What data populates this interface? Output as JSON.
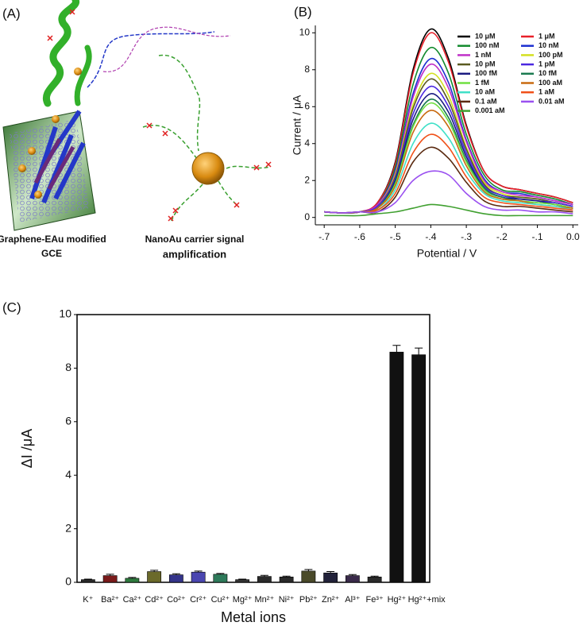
{
  "panel_labels": [
    "(A)",
    "(B)",
    "(C)"
  ],
  "schematic": {
    "left_label": [
      "Graphene-EAu modified",
      "GCE"
    ],
    "right_label": [
      "NanoAu carrier signal",
      "amplification"
    ]
  },
  "chart_data": [
    {
      "type": "line",
      "ylabel": "Current / μA",
      "xlabel": "Potential / V",
      "x": [
        -0.7,
        -0.65,
        -0.6,
        -0.55,
        -0.5,
        -0.45,
        -0.4,
        -0.35,
        -0.3,
        -0.25,
        -0.2,
        -0.15,
        -0.1,
        -0.05,
        0
      ],
      "xlim": [
        -0.725,
        0.015
      ],
      "xticks": [
        {
          "value": -0.7,
          "label": "-.7"
        },
        {
          "value": -0.6,
          "label": "-.6"
        },
        {
          "value": -0.5,
          "label": "-.5"
        },
        {
          "value": -0.4,
          "label": "-.4"
        },
        {
          "value": -0.3,
          "label": "-.3"
        },
        {
          "value": -0.2,
          "label": "-.2"
        },
        {
          "value": -0.1,
          "label": "-.1"
        },
        {
          "value": 0,
          "label": "0.0"
        }
      ],
      "ylim": [
        -0.4,
        10.4
      ],
      "yticks": [
        0,
        2,
        4,
        6,
        8,
        10
      ],
      "legend": "upper right",
      "series": [
        {
          "name": "10 μM",
          "color": "#000000",
          "values": [
            0.3,
            0.25,
            0.3,
            0.8,
            3.0,
            8.0,
            10.2,
            8.6,
            5.0,
            2.5,
            1.7,
            1.5,
            1.3,
            1.1,
            0.8
          ]
        },
        {
          "name": "1 μM",
          "color": "#e8202a",
          "values": [
            0.3,
            0.25,
            0.3,
            0.8,
            2.9,
            7.8,
            10.0,
            8.4,
            4.9,
            2.5,
            1.7,
            1.5,
            1.3,
            1.1,
            0.8
          ]
        },
        {
          "name": "100 nM",
          "color": "#138a2e",
          "values": [
            0.3,
            0.25,
            0.3,
            0.7,
            2.7,
            7.2,
            9.2,
            7.8,
            4.5,
            2.3,
            1.5,
            1.4,
            1.2,
            1.0,
            0.7
          ]
        },
        {
          "name": "10 nM",
          "color": "#1c2fd0",
          "values": [
            0.3,
            0.25,
            0.3,
            0.7,
            2.5,
            6.7,
            8.6,
            7.3,
            4.2,
            2.1,
            1.4,
            1.3,
            1.1,
            0.9,
            0.7
          ]
        },
        {
          "name": "1 nM",
          "color": "#c030c8",
          "values": [
            0.3,
            0.25,
            0.3,
            0.7,
            2.4,
            6.5,
            8.3,
            7.0,
            4.1,
            2.0,
            1.4,
            1.2,
            1.1,
            0.9,
            0.7
          ]
        },
        {
          "name": "100 pM",
          "color": "#d4e020",
          "values": [
            0.3,
            0.25,
            0.3,
            0.6,
            2.3,
            6.1,
            7.8,
            6.6,
            3.8,
            1.9,
            1.3,
            1.1,
            1.0,
            0.8,
            0.6
          ]
        },
        {
          "name": "10 pM",
          "color": "#5a5a20",
          "values": [
            0.3,
            0.25,
            0.3,
            0.6,
            2.2,
            5.9,
            7.5,
            6.3,
            3.7,
            1.8,
            1.2,
            1.1,
            1.0,
            0.8,
            0.6
          ]
        },
        {
          "name": "1 pM",
          "color": "#4a28e0",
          "values": [
            0.3,
            0.25,
            0.3,
            0.6,
            2.1,
            5.6,
            7.1,
            6.0,
            3.5,
            1.7,
            1.2,
            1.0,
            0.9,
            0.8,
            0.6
          ]
        },
        {
          "name": "100 fM",
          "color": "#1a1a80",
          "values": [
            0.3,
            0.25,
            0.3,
            0.5,
            2.0,
            5.3,
            6.7,
            5.7,
            3.3,
            1.6,
            1.1,
            1.0,
            0.9,
            0.7,
            0.5
          ]
        },
        {
          "name": "10 fM",
          "color": "#1a7a50",
          "values": [
            0.3,
            0.25,
            0.3,
            0.5,
            1.9,
            5.0,
            6.4,
            5.4,
            3.1,
            1.6,
            1.1,
            0.9,
            0.8,
            0.7,
            0.5
          ]
        },
        {
          "name": "1 fM",
          "color": "#70e040",
          "values": [
            0.3,
            0.25,
            0.3,
            0.5,
            1.8,
            4.9,
            6.2,
            5.2,
            3.0,
            1.5,
            1.0,
            0.9,
            0.8,
            0.7,
            0.5
          ]
        },
        {
          "name": "100 aM",
          "color": "#c86a10",
          "values": [
            0.3,
            0.25,
            0.3,
            0.5,
            1.7,
            4.6,
            5.8,
            4.9,
            2.8,
            1.4,
            1.0,
            0.9,
            0.7,
            0.6,
            0.5
          ]
        },
        {
          "name": "10 aM",
          "color": "#40e0c8",
          "values": [
            0.3,
            0.25,
            0.3,
            0.4,
            1.5,
            4.0,
            5.1,
            4.3,
            2.5,
            1.3,
            0.9,
            0.8,
            0.7,
            0.6,
            0.4
          ]
        },
        {
          "name": "1 aM",
          "color": "#f05018",
          "values": [
            0.3,
            0.25,
            0.3,
            0.4,
            1.3,
            3.5,
            4.5,
            3.8,
            2.2,
            1.1,
            0.8,
            0.7,
            0.6,
            0.5,
            0.4
          ]
        },
        {
          "name": "0.1 aM",
          "color": "#5a2a10",
          "values": [
            0.3,
            0.25,
            0.3,
            0.3,
            1.1,
            3.0,
            3.8,
            3.2,
            1.9,
            0.9,
            0.6,
            0.6,
            0.5,
            0.4,
            0.3
          ]
        },
        {
          "name": "0.01 aM",
          "color": "#9a50f0",
          "values": [
            0.3,
            0.25,
            0.3,
            0.3,
            0.8,
            2.0,
            2.5,
            2.3,
            1.3,
            0.6,
            0.4,
            0.4,
            0.3,
            0.3,
            0.2
          ]
        },
        {
          "name": "0.001 aM",
          "color": "#40a030",
          "values": [
            0.1,
            0.1,
            0.1,
            0.2,
            0.3,
            0.5,
            0.7,
            0.6,
            0.4,
            0.2,
            0.1,
            0.1,
            0.1,
            0.1,
            0.1
          ]
        }
      ]
    },
    {
      "type": "bar",
      "ylabel": "ΔI /μA",
      "xlabel": "Metal ions",
      "categories": [
        "K⁺",
        "Ba²⁺",
        "Ca²⁺",
        "Cd²⁺",
        "Co²⁺",
        "Cr²⁺",
        "Cu²⁺",
        "Mg²⁺",
        "Mn²⁺",
        "Ni²⁺",
        "Pb²⁺",
        "Zn²⁺",
        "Al³⁺",
        "Fe³⁺",
        "Hg²⁺",
        "Hg²⁺+mix"
      ],
      "values": [
        0.1,
        0.25,
        0.15,
        0.4,
        0.28,
        0.38,
        0.3,
        0.1,
        0.22,
        0.2,
        0.42,
        0.35,
        0.25,
        0.2,
        8.6,
        8.5
      ],
      "errors": [
        0.02,
        0.05,
        0.03,
        0.05,
        0.04,
        0.04,
        0.03,
        0.02,
        0.04,
        0.03,
        0.06,
        0.05,
        0.04,
        0.03,
        0.25,
        0.25
      ],
      "colors": [
        "#2a2a2a",
        "#7a1a1a",
        "#2e7a3e",
        "#6b6a2a",
        "#34348a",
        "#4a46b0",
        "#2e7a5a",
        "#333333",
        "#2a2a2a",
        "#2a2a2a",
        "#4a4a2a",
        "#22223a",
        "#3a2a4a",
        "#2a2a2a",
        "#111111",
        "#111111"
      ],
      "ylim": [
        0,
        10
      ],
      "yticks": [
        0,
        2,
        4,
        6,
        8,
        10
      ]
    }
  ]
}
